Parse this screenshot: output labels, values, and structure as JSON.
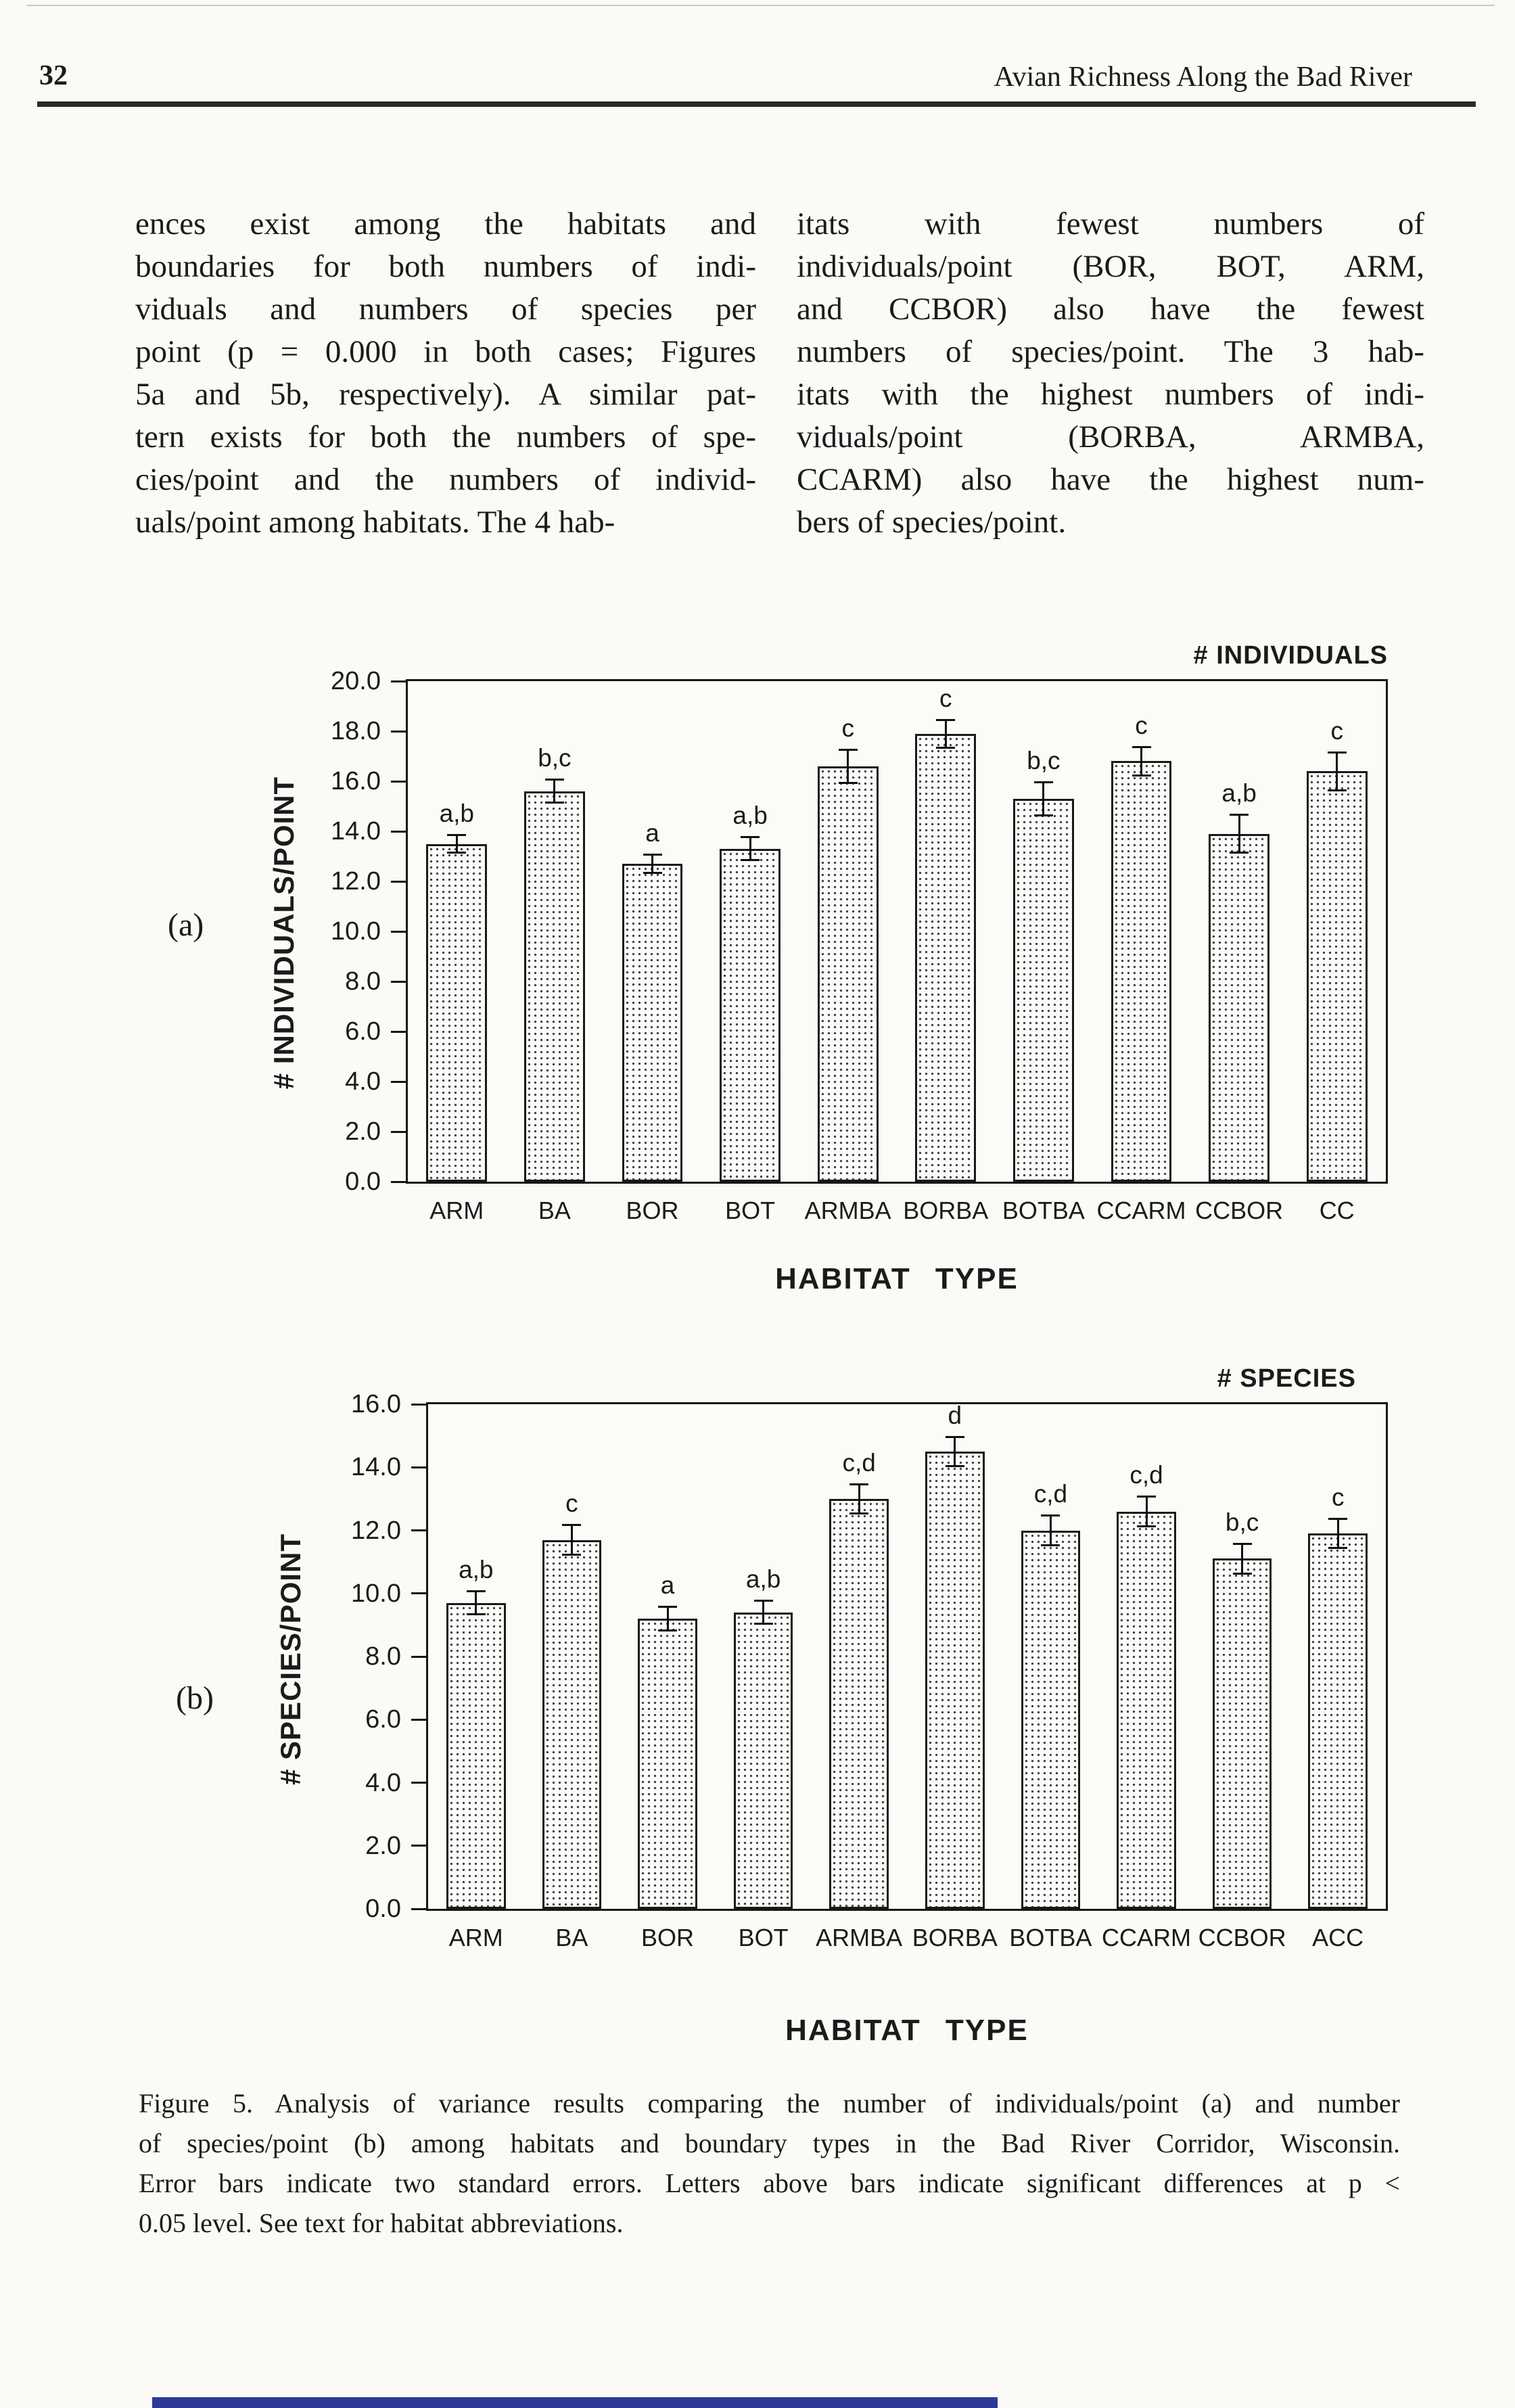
{
  "page": {
    "number": "32",
    "running_head": "Avian Richness Along the Bad River"
  },
  "body": {
    "left_column_lines": [
      "ences exist among the habitats and",
      "boundaries for both numbers of indi-",
      "viduals and numbers of species per",
      "point (p = 0.000 in both cases; Figures",
      "5a and 5b, respectively). A similar pat-",
      "tern exists for both the numbers of spe-",
      "cies/point and the numbers of individ-",
      "uals/point among habitats. The 4 hab-"
    ],
    "right_column_lines": [
      "itats with fewest numbers of",
      "individuals/point (BOR, BOT, ARM,",
      "and CCBOR) also have the fewest",
      "numbers of species/point. The 3 hab-",
      "itats with the highest numbers of indi-",
      "viduals/point (BORBA, ARMBA,",
      "CCARM) also have the highest num-",
      "bers of species/point."
    ]
  },
  "figure": {
    "caption_lines": [
      "Figure 5. Analysis of variance results comparing the number of individuals/point (a) and number",
      "of species/point (b) among habitats and boundary types in the Bad River Corridor, Wisconsin.",
      "Error bars indicate two standard errors. Letters above bars indicate significant differences at p <",
      "0.05 level. See text for habitat abbreviations."
    ]
  },
  "artifact_color": "#2e3a96",
  "chart_data": [
    {
      "type": "bar",
      "panel_label": "(a)",
      "legend": "# INDIVIDUALS",
      "ylabel": "# INDIVIDUALS/POINT",
      "xlabel": "HABITAT TYPE",
      "ylim": [
        0,
        20
      ],
      "ytick_step": 2,
      "grid": false,
      "legend_position": "top-right",
      "yticks": [
        "20.0",
        "18.0",
        "16.0",
        "14.0",
        "12.0",
        "10.0",
        "8.0",
        "6.0",
        "4.0",
        "2.0",
        "0.0"
      ],
      "categories": [
        "ARM",
        "BA",
        "BOR",
        "BOT",
        "ARMBA",
        "BORBA",
        "BOTBA",
        "CCARM",
        "CCBOR",
        "CC"
      ],
      "values": [
        13.5,
        15.6,
        12.7,
        13.3,
        16.6,
        17.9,
        15.3,
        16.8,
        13.9,
        16.4
      ],
      "errors": [
        0.4,
        0.5,
        0.4,
        0.5,
        0.7,
        0.6,
        0.7,
        0.6,
        0.8,
        0.8
      ],
      "letters": [
        "a,b",
        "b,c",
        "a",
        "a,b",
        "c",
        "c",
        "b,c",
        "c",
        "a,b",
        "c"
      ]
    },
    {
      "type": "bar",
      "panel_label": "(b)",
      "legend": "# SPECIES",
      "ylabel": "# SPECIES/POINT",
      "xlabel": "HABITAT TYPE",
      "ylim": [
        0,
        16
      ],
      "ytick_step": 2,
      "grid": false,
      "legend_position": "top-right",
      "yticks": [
        "16.0",
        "14.0",
        "12.0",
        "10.0",
        "8.0",
        "6.0",
        "4.0",
        "2.0",
        "0.0"
      ],
      "categories": [
        "ARM",
        "BA",
        "BOR",
        "BOT",
        "ARMBA",
        "BORBA",
        "BOTBA",
        "CCARM",
        "CCBOR",
        "ACC"
      ],
      "values": [
        9.7,
        11.7,
        9.2,
        9.4,
        13.0,
        14.5,
        12.0,
        12.6,
        11.1,
        11.9
      ],
      "errors": [
        0.4,
        0.5,
        0.4,
        0.4,
        0.5,
        0.5,
        0.5,
        0.5,
        0.5,
        0.5
      ],
      "letters": [
        "a,b",
        "c",
        "a",
        "a,b",
        "c,d",
        "d",
        "c,d",
        "c,d",
        "b,c",
        "c"
      ]
    }
  ]
}
